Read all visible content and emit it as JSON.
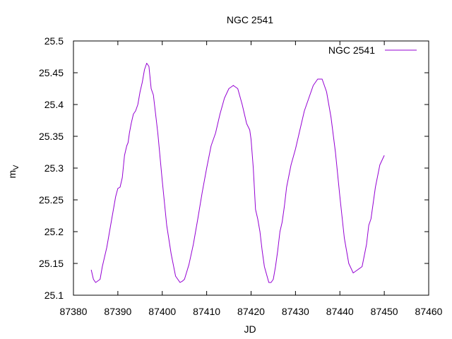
{
  "chart_data": {
    "type": "line",
    "title": "NGC 2541",
    "xlabel": "JD",
    "ylabel": "m",
    "ylabel_sub": "V",
    "xlim": [
      87380,
      87460
    ],
    "ylim": [
      25.1,
      25.5
    ],
    "xticks": [
      "87380",
      "87390",
      "87400",
      "87410",
      "87420",
      "87430",
      "87440",
      "87450",
      "87460"
    ],
    "yticks": [
      "25.1",
      "25.15",
      "25.2",
      "25.25",
      "25.3",
      "25.35",
      "25.4",
      "25.45",
      "25.5"
    ],
    "grid": false,
    "legend_position": "top-right",
    "series": [
      {
        "name": "NGC 2541",
        "color": "#9400d3",
        "x": [
          87384,
          87384.5,
          87385,
          87386,
          87386.5,
          87387,
          87387.5,
          87388,
          87388.5,
          87389,
          87389.5,
          87390,
          87390.5,
          87391,
          87391.5,
          87392,
          87392.3,
          87392.6,
          87393,
          87393.5,
          87394,
          87394.5,
          87395,
          87395.5,
          87396,
          87396.5,
          87397,
          87397.5,
          87398,
          87399,
          87400,
          87401,
          87402,
          87403,
          87404,
          87404.5,
          87405,
          87406,
          87407,
          87408,
          87409,
          87410,
          87411,
          87412,
          87413,
          87414,
          87415,
          87416,
          87417,
          87418,
          87419,
          87419.7,
          87420,
          87420.5,
          87421,
          87421.5,
          87422,
          87422.5,
          87423,
          87424,
          87424.5,
          87425,
          87425.5,
          87426,
          87426.5,
          87427,
          87427.5,
          87428,
          87429,
          87430,
          87431,
          87432,
          87433,
          87434,
          87435,
          87436,
          87437,
          87438,
          87439,
          87440,
          87441,
          87442,
          87443,
          87444,
          87445,
          87446,
          87446.5,
          87447,
          87447.5,
          87448,
          87449,
          87450
        ],
        "y": [
          25.14,
          25.125,
          25.12,
          25.125,
          25.145,
          25.16,
          25.175,
          25.195,
          25.215,
          25.235,
          25.255,
          25.268,
          25.27,
          25.285,
          25.32,
          25.335,
          25.34,
          25.355,
          25.37,
          25.385,
          25.39,
          25.4,
          25.42,
          25.435,
          25.455,
          25.465,
          25.46,
          25.425,
          25.415,
          25.355,
          25.28,
          25.21,
          25.165,
          25.13,
          25.12,
          25.122,
          25.125,
          25.148,
          25.18,
          25.22,
          25.262,
          25.3,
          25.335,
          25.355,
          25.385,
          25.41,
          25.425,
          25.43,
          25.425,
          25.4,
          25.37,
          25.36,
          25.345,
          25.3,
          25.235,
          25.22,
          25.2,
          25.17,
          25.145,
          25.12,
          25.12,
          25.125,
          25.145,
          25.17,
          25.2,
          25.215,
          25.24,
          25.27,
          25.305,
          25.33,
          25.36,
          25.39,
          25.41,
          25.43,
          25.44,
          25.44,
          25.42,
          25.38,
          25.325,
          25.255,
          25.19,
          25.15,
          25.135,
          25.14,
          25.145,
          25.18,
          25.21,
          25.22,
          25.245,
          25.27,
          25.305,
          25.32
        ]
      }
    ]
  }
}
